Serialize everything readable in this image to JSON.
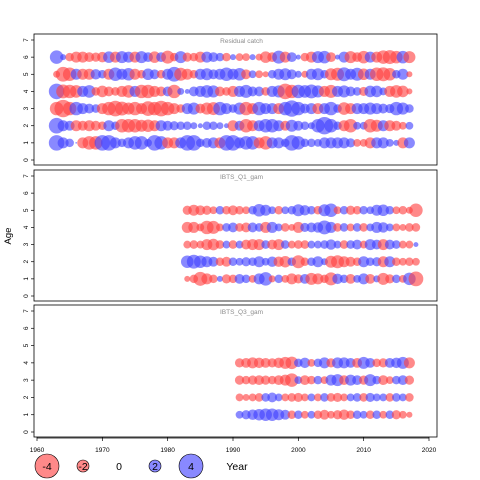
{
  "chart_data": {
    "type": "scatter",
    "encoding": "bubble",
    "ylabel": "Age",
    "xlabel": "Year",
    "xlim": [
      1960,
      2020
    ],
    "ylim": [
      0,
      7
    ],
    "x_ticks": [
      1960,
      1970,
      1980,
      1990,
      2000,
      2010,
      2020
    ],
    "y_ticks": [
      0,
      1,
      2,
      3,
      4,
      5,
      6,
      7
    ],
    "colors": {
      "negative": "#ff4040",
      "positive": "#4040ff"
    },
    "legend": {
      "position": "bottom",
      "values": [
        -4,
        -2,
        0,
        2,
        4
      ],
      "labels": [
        "-4",
        "-2",
        "0",
        "2",
        "4"
      ]
    },
    "panels": [
      {
        "title": "Residual catch",
        "start_year": 1963,
        "end_year": 2017,
        "ages": [
          1,
          2,
          3,
          4,
          5,
          6
        ],
        "residuals": {
          "1": [
            2,
            1,
            0.6,
            0,
            -1,
            -1.5,
            -1.5,
            2,
            2,
            1,
            0.6,
            1,
            1.5,
            1.5,
            0.5,
            2,
            1.5,
            -1,
            -1,
            1,
            2,
            2,
            0.6,
            0.8,
            1,
            -1,
            2,
            2,
            1,
            1.5,
            1.5,
            -1,
            -1.5,
            1,
            1,
            0.6,
            2,
            1.5,
            0.6,
            0.6,
            0.5,
            1,
            1,
            1,
            1,
            0.7,
            -0.5,
            -0.5,
            -1,
            1,
            1,
            0.5,
            0.3,
            -1,
            1
          ],
          "2": [
            2,
            1,
            0.8,
            -1,
            -0.8,
            -1,
            -0.8,
            -0.6,
            1,
            0.6,
            -1.5,
            -1.5,
            -1.5,
            -1.2,
            -1.3,
            -1,
            1,
            0.8,
            0.7,
            0.6,
            0.6,
            0.4,
            0.2,
            0.6,
            0.6,
            0.4,
            0.2,
            -1,
            0.8,
            -1.5,
            -1,
            1,
            1.5,
            1.5,
            1,
            -0.8,
            1.2,
            0.8,
            0.6,
            0.4,
            1.5,
            2.5,
            1.5,
            0.6,
            -1,
            -1.5,
            0.5,
            0.5,
            -1.5,
            -1.2,
            1,
            -1,
            -0.8,
            -0.5,
            0.5
          ],
          "3": [
            -1.5,
            -2.5,
            -1.5,
            1.5,
            1,
            0.8,
            0.6,
            -1,
            -1.5,
            -2,
            -1.6,
            -1.2,
            -1.5,
            -1,
            -1.8,
            -1.5,
            -2,
            -1.5,
            -1,
            -0.6,
            1,
            1.2,
            -0.8,
            -1.2,
            -1.4,
            1.5,
            1,
            0.6,
            1.2,
            -1.5,
            -1,
            1.5,
            1,
            1,
            -1,
            1.5,
            2.2,
            1.5,
            0.8,
            1,
            -1,
            1,
            1.5,
            0.6,
            -1.3,
            -1,
            1,
            1,
            1.2,
            1,
            0.8,
            0.7,
            1.5,
            1.2,
            0.6
          ],
          "4": [
            2,
            -1.6,
            -1.5,
            -1.3,
            1,
            1.3,
            -0.6,
            -1.1,
            -0.8,
            -0.6,
            -1,
            -1.3,
            1,
            -1.5,
            -1.5,
            -1,
            -0.8,
            0.8,
            -1.5,
            0.4,
            0.2,
            0.8,
            1,
            1.3,
            1.2,
            -0.8,
            -0.6,
            -1,
            1,
            1.4,
            0.8,
            0.8,
            -0.6,
            1,
            1.2,
            -2,
            -1.5,
            1.5,
            1.3,
            1.6,
            1.2,
            -1,
            -1.4,
            1,
            1.2,
            0.8,
            0.6,
            -0.7,
            1.1,
            1.1,
            0.5,
            -1,
            -1.3,
            -1.1,
            -0.3
          ],
          "5": [
            -0.4,
            -1.8,
            -1.5,
            1,
            -1,
            -1,
            0.9,
            0.6,
            -1,
            1.5,
            1,
            1.3,
            -1,
            -0.6,
            1.1,
            0.8,
            -0.6,
            1,
            1.8,
            -1.4,
            -1,
            -0.6,
            1,
            1.2,
            0.8,
            1,
            1.5,
            1,
            1.3,
            -0.8,
            0.5,
            -0.5,
            -0.3,
            0.6,
            1,
            1.2,
            0.8,
            0.4,
            -0.4,
            1,
            1.2,
            0.6,
            -1.2,
            -1.4,
            1.6,
            1,
            1.4,
            -1.1,
            1,
            -1.5,
            -1.6,
            -1.3,
            0.6,
            1,
            -0.3
          ],
          "6": [
            1.5,
            0.3,
            -0.6,
            -1,
            -1,
            -0.8,
            -0.7,
            -0.9,
            1.1,
            -1,
            1.2,
            1,
            -1,
            1.2,
            0.8,
            -1.1,
            0.8,
            -1.4,
            -0.6,
            1.2,
            -0.7,
            -0.6,
            -1,
            1,
            0.8,
            0.6,
            -0.6,
            0.3,
            -0.5,
            -0.5,
            0.3,
            -0.4,
            -1.1,
            -0.8,
            1.4,
            -1,
            0.8,
            0.2,
            -0.6,
            -1,
            1.2,
            1.3,
            -0.8,
            0.2,
            1,
            -1.2,
            -0.8,
            -1.3,
            1,
            -1,
            -1.5,
            -1.6,
            -1.3,
            1.3,
            -1.2
          ]
        }
      },
      {
        "title": "IBTS_Q1_gam",
        "start_year": 1983,
        "end_year": 2018,
        "ages": [
          1,
          2,
          3,
          4,
          5
        ],
        "residuals": {
          "1": [
            -0.3,
            -0.6,
            -1.6,
            -1,
            -0.6,
            0.3,
            -0.7,
            -0.6,
            0.8,
            0.6,
            -0.5,
            1,
            1.5,
            -0.4,
            0.6,
            -0.5,
            -1,
            -0.7,
            0.8,
            -1.2,
            -1,
            -0.6,
            -1.4,
            0.9,
            0.6,
            -0.8,
            0.5,
            1,
            -0.8,
            0.4,
            -1.2,
            -0.7,
            0.6,
            -0.5,
            1.3,
            -1.8
          ],
          "2": [
            1.3,
            1.6,
            1.3,
            1,
            0.8,
            -0.6,
            -0.8,
            0.6,
            0.5,
            0.7,
            0.6,
            1,
            0.5,
            0.9,
            -0.9,
            -1.1,
            0.6,
            -1.4,
            -0.6,
            0.6,
            1,
            0.4,
            -1.2,
            -1.4,
            -1,
            -0.8,
            -0.6,
            1,
            0.6,
            0.7,
            -1,
            1,
            -0.6,
            -0.5,
            -0.6,
            -0.5
          ],
          "3": [
            -0.5,
            -0.6,
            -0.5,
            -1,
            -1.1,
            -0.6,
            0.5,
            -0.6,
            0.5,
            -0.8,
            -1,
            -1,
            0.6,
            -0.8,
            -1,
            0.6,
            -0.5,
            -0.6,
            -0.6,
            0.5,
            0.5,
            0.6,
            0.9,
            0.5,
            -0.6,
            0.6,
            0.8,
            -0.5,
            1,
            0.8,
            -1,
            0.8,
            0.6,
            -0.5,
            -0.5,
            0.2
          ],
          "4": [
            -1,
            -1,
            -0.5,
            -1.5,
            -1.4,
            -0.5,
            0.6,
            0.8,
            -0.6,
            -0.8,
            0.8,
            0.6,
            -1,
            1,
            0.5,
            -0.6,
            -0.4,
            -1,
            0.7,
            0.8,
            0.9,
            1.6,
            1,
            -0.6,
            0.6,
            -0.5,
            0.6,
            -0.6,
            0.5,
            1,
            0.9,
            0.5,
            -0.5,
            -0.4,
            -0.6,
            -0.6
          ],
          "5": [
            -0.7,
            -1,
            -0.8,
            -0.7,
            -0.5,
            0.6,
            -0.6,
            -0.8,
            -0.6,
            -0.5,
            0.6,
            1.3,
            1,
            0.5,
            -0.6,
            0.5,
            0.6,
            1.2,
            0.9,
            0.6,
            -0.6,
            1.2,
            1.5,
            -0.5,
            0.6,
            -0.7,
            -0.6,
            0.6,
            0.5,
            1,
            1.1,
            0.6,
            -0.5,
            -0.6,
            -0.4,
            -1.5
          ]
        }
      },
      {
        "title": "IBTS_Q3_gam",
        "start_year": 1991,
        "end_year": 2017,
        "ages": [
          1,
          2,
          3,
          4
        ],
        "residuals": {
          "1": [
            0.5,
            0.7,
            0.9,
            1.1,
            1.3,
            1.3,
            1,
            0.8,
            -0.6,
            0.6,
            -0.5,
            0.5,
            -0.6,
            -0.8,
            -0.5,
            -0.7,
            -0.9,
            -0.6,
            0.6,
            0.5,
            -0.6,
            0.6,
            -0.5,
            0.6,
            -0.7,
            -0.5,
            -0.3
          ],
          "2": [
            -0.5,
            -0.4,
            -0.5,
            -0.6,
            0.6,
            0.8,
            0.5,
            -0.5,
            -0.6,
            -0.7,
            -0.5,
            0.5,
            -0.5,
            0.6,
            -0.6,
            -0.7,
            -0.5,
            0.5,
            0.6,
            -0.6,
            0.7,
            0.5,
            0.5,
            -0.6,
            0.6,
            0.5,
            -0.6
          ],
          "3": [
            -0.7,
            -0.6,
            -0.7,
            -0.8,
            -0.7,
            -0.6,
            -0.8,
            -1,
            -1.5,
            0.5,
            -0.8,
            -0.6,
            0.6,
            -0.5,
            1,
            1.2,
            -0.8,
            1,
            0.8,
            -0.7,
            1.2,
            0.6,
            -0.8,
            -0.5,
            0.6,
            0.8,
            -0.7
          ],
          "4": [
            -0.7,
            -0.8,
            -1,
            -0.9,
            -0.8,
            -0.7,
            -0.9,
            -1.2,
            -1.3,
            0.6,
            0.9,
            -0.5,
            0.6,
            1,
            -0.7,
            1,
            1,
            0.8,
            -0.8,
            1.2,
            0.8,
            -0.6,
            -0.7,
            0.8,
            0.9,
            1.2,
            -1
          ]
        }
      }
    ]
  }
}
